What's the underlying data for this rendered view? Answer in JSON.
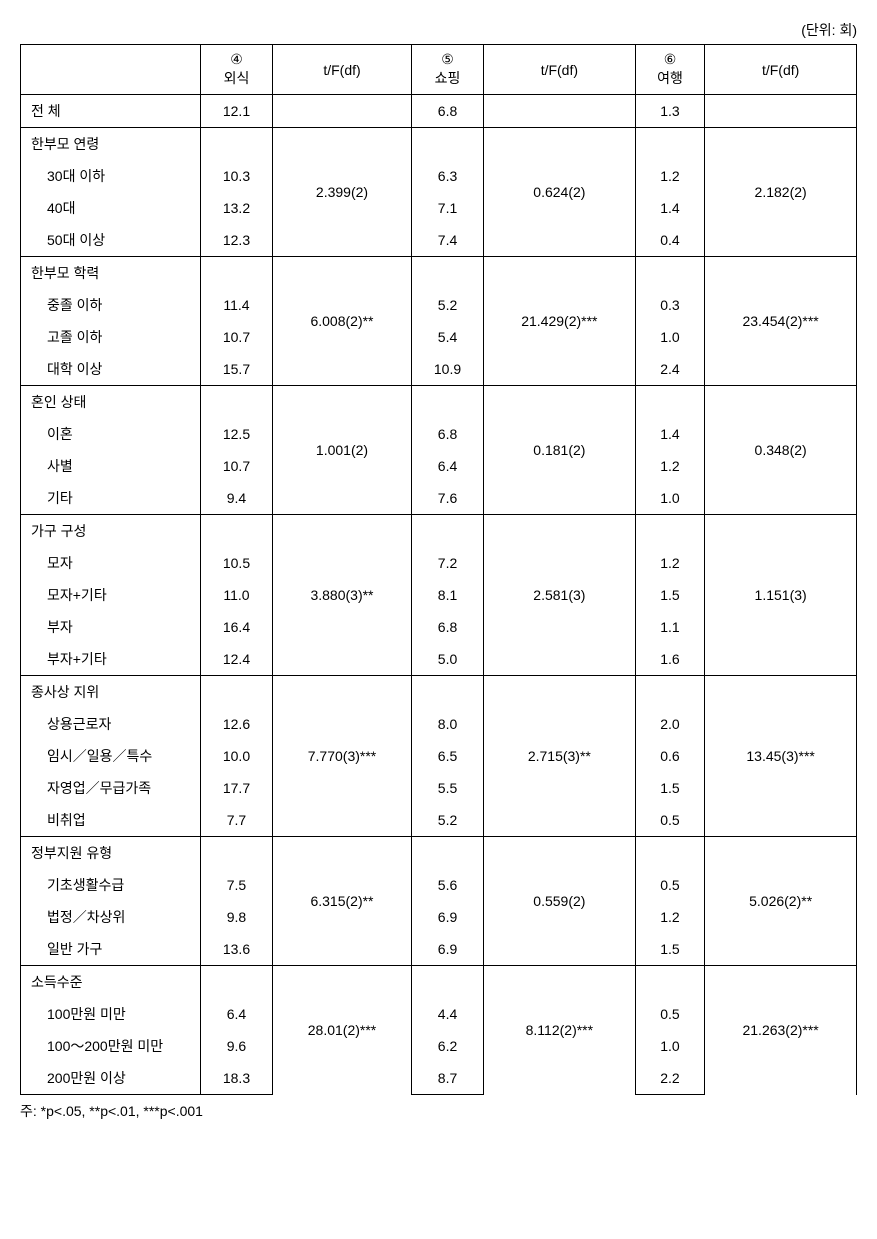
{
  "unit_label": "(단위: 회)",
  "headers": {
    "col1_num": "④",
    "col1_label": "외식",
    "col1_stat": "t/F(df)",
    "col2_num": "⑤",
    "col2_label": "쇼핑",
    "col2_stat": "t/F(df)",
    "col3_num": "⑥",
    "col3_label": "여행",
    "col3_stat": "t/F(df)"
  },
  "total_row": {
    "label": "전 체",
    "c1": "12.1",
    "c2": "6.8",
    "c3": "1.3"
  },
  "groups": [
    {
      "title": "한부모 연령",
      "stat1": "2.399(2)",
      "stat2": "0.624(2)",
      "stat3": "2.182(2)",
      "rows": [
        {
          "label": "30대 이하",
          "c1": "10.3",
          "c2": "6.3",
          "c3": "1.2"
        },
        {
          "label": "40대",
          "c1": "13.2",
          "c2": "7.1",
          "c3": "1.4"
        },
        {
          "label": "50대 이상",
          "c1": "12.3",
          "c2": "7.4",
          "c3": "0.4"
        }
      ]
    },
    {
      "title": "한부모 학력",
      "stat1": "6.008(2)**",
      "stat2": "21.429(2)***",
      "stat3": "23.454(2)***",
      "rows": [
        {
          "label": "중졸 이하",
          "c1": "11.4",
          "c2": "5.2",
          "c3": "0.3"
        },
        {
          "label": "고졸 이하",
          "c1": "10.7",
          "c2": "5.4",
          "c3": "1.0"
        },
        {
          "label": "대학 이상",
          "c1": "15.7",
          "c2": "10.9",
          "c3": "2.4"
        }
      ]
    },
    {
      "title": "혼인 상태",
      "stat1": "1.001(2)",
      "stat2": "0.181(2)",
      "stat3": "0.348(2)",
      "rows": [
        {
          "label": "이혼",
          "c1": "12.5",
          "c2": "6.8",
          "c3": "1.4"
        },
        {
          "label": "사별",
          "c1": "10.7",
          "c2": "6.4",
          "c3": "1.2"
        },
        {
          "label": "기타",
          "c1": "9.4",
          "c2": "7.6",
          "c3": "1.0"
        }
      ]
    },
    {
      "title": "가구 구성",
      "stat1": "3.880(3)**",
      "stat2": "2.581(3)",
      "stat3": "1.151(3)",
      "rows": [
        {
          "label": "모자",
          "c1": "10.5",
          "c2": "7.2",
          "c3": "1.2"
        },
        {
          "label": "모자+기타",
          "c1": "11.0",
          "c2": "8.1",
          "c3": "1.5"
        },
        {
          "label": "부자",
          "c1": "16.4",
          "c2": "6.8",
          "c3": "1.1"
        },
        {
          "label": "부자+기타",
          "c1": "12.4",
          "c2": "5.0",
          "c3": "1.6"
        }
      ]
    },
    {
      "title": "종사상 지위",
      "stat1": "7.770(3)***",
      "stat2": "2.715(3)**",
      "stat3": "13.45(3)***",
      "rows": [
        {
          "label": "상용근로자",
          "c1": "12.6",
          "c2": "8.0",
          "c3": "2.0"
        },
        {
          "label": "임시／일용／특수",
          "c1": "10.0",
          "c2": "6.5",
          "c3": "0.6"
        },
        {
          "label": "자영업／무급가족",
          "c1": "17.7",
          "c2": "5.5",
          "c3": "1.5"
        },
        {
          "label": "비취업",
          "c1": "7.7",
          "c2": "5.2",
          "c3": "0.5"
        }
      ]
    },
    {
      "title": "정부지원 유형",
      "stat1": "6.315(2)**",
      "stat2": "0.559(2)",
      "stat3": "5.026(2)**",
      "rows": [
        {
          "label": "기초생활수급",
          "c1": "7.5",
          "c2": "5.6",
          "c3": "0.5"
        },
        {
          "label": "법정／차상위",
          "c1": "9.8",
          "c2": "6.9",
          "c3": "1.2"
        },
        {
          "label": "일반 가구",
          "c1": "13.6",
          "c2": "6.9",
          "c3": "1.5"
        }
      ]
    },
    {
      "title": "소득수준",
      "stat1": "28.01(2)***",
      "stat2": "8.112(2)***",
      "stat3": "21.263(2)***",
      "rows": [
        {
          "label": "100만원 미만",
          "c1": "6.4",
          "c2": "4.4",
          "c3": "0.5"
        },
        {
          "label": "100～200만원 미만",
          "c1": "9.6",
          "c2": "6.2",
          "c3": "1.0"
        },
        {
          "label": "200만원 이상",
          "c1": "18.3",
          "c2": "8.7",
          "c3": "2.2"
        }
      ]
    }
  ],
  "footnote": "주: *p<.05,  **p<.01,  ***p<.001"
}
